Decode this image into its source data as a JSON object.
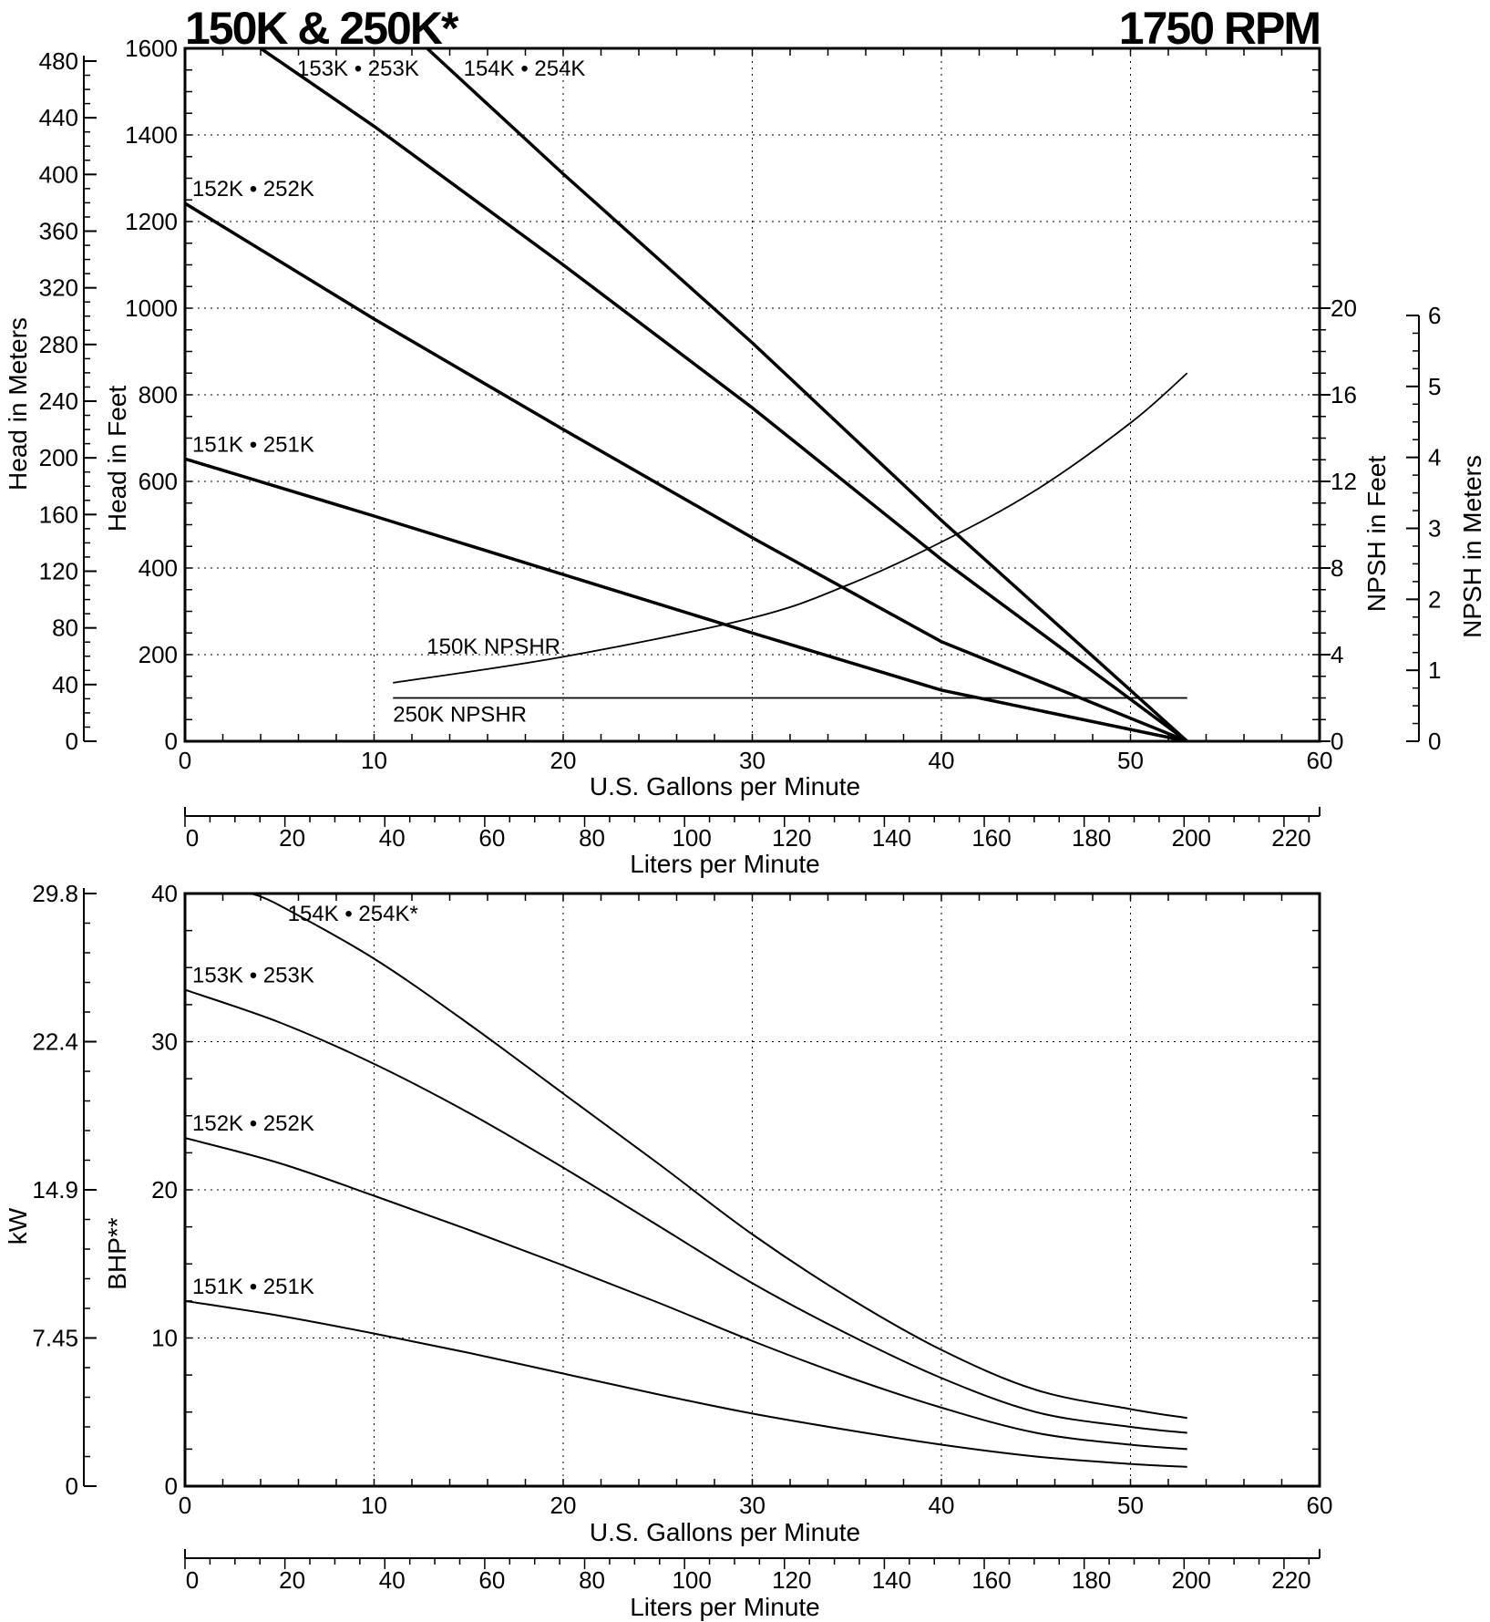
{
  "header": {
    "title_left": "150K & 250K*",
    "title_right": "1750 RPM"
  },
  "chart_data": [
    {
      "type": "line",
      "id": "head",
      "xlabel": "U.S. Gallons per Minute",
      "xlim": [
        0,
        60
      ],
      "x_ticks": [
        0,
        10,
        20,
        30,
        40,
        50,
        60
      ],
      "ylabel": "Head in Feet",
      "ylim": [
        0,
        1600
      ],
      "y_ticks": [
        0,
        200,
        400,
        600,
        800,
        1000,
        1200,
        1400,
        1600
      ],
      "grid": true,
      "secondary_axes": {
        "head_meters": {
          "label": "Head in Meters",
          "ticks": [
            0,
            40,
            80,
            120,
            160,
            200,
            240,
            280,
            320,
            360,
            400,
            440,
            480
          ]
        },
        "npsh_feet": {
          "label": "NPSH in Feet",
          "ticks": [
            0,
            4,
            8,
            12,
            16,
            20
          ],
          "range": [
            0,
            20
          ]
        },
        "npsh_meters": {
          "label": "NPSH in Meters",
          "ticks": [
            0,
            1,
            2,
            3,
            4,
            5,
            6
          ],
          "range": [
            0,
            6
          ]
        },
        "liters": {
          "label": "Liters per Minute",
          "ticks": [
            0,
            20,
            40,
            60,
            80,
            100,
            120,
            140,
            160,
            180,
            200,
            220
          ]
        }
      },
      "series": [
        {
          "name": "151K • 251K",
          "x": [
            0,
            10,
            20,
            30,
            40,
            53
          ],
          "y": [
            652,
            520,
            385,
            250,
            118,
            0
          ]
        },
        {
          "name": "152K • 252K",
          "x": [
            0,
            10,
            20,
            30,
            40,
            53
          ],
          "y": [
            1242,
            975,
            720,
            470,
            230,
            0
          ]
        },
        {
          "name": "153K • 253K",
          "x": [
            4,
            10,
            20,
            30,
            40,
            53
          ],
          "y": [
            1600,
            1420,
            1100,
            770,
            420,
            0
          ]
        },
        {
          "name": "154K • 254K",
          "x": [
            12.8,
            20,
            30,
            40,
            53
          ],
          "y": [
            1600,
            1310,
            920,
            510,
            0
          ]
        }
      ],
      "npshr": [
        {
          "name": "150K NPSHR",
          "axis": "npsh_feet",
          "x": [
            11,
            20,
            30,
            35,
            40,
            45,
            50,
            53
          ],
          "y": [
            2.7,
            3.9,
            5.7,
            7.2,
            9.2,
            11.6,
            14.7,
            17
          ]
        },
        {
          "name": "250K NPSHR",
          "axis": "npsh_feet",
          "x": [
            11,
            53
          ],
          "y": [
            2,
            2
          ]
        }
      ]
    },
    {
      "type": "line",
      "id": "bhp",
      "xlabel": "U.S. Gallons per Minute",
      "xlim": [
        0,
        60
      ],
      "x_ticks": [
        0,
        10,
        20,
        30,
        40,
        50,
        60
      ],
      "ylabel": "BHP**",
      "ylim": [
        0,
        40
      ],
      "y_ticks": [
        0,
        10,
        20,
        30,
        40
      ],
      "grid": true,
      "secondary_axes": {
        "kw": {
          "label": "kW",
          "ticks": [
            "0",
            "7.45",
            "14.9",
            "22.4",
            "29.8"
          ]
        },
        "liters": {
          "label": "Liters per Minute",
          "ticks": [
            0,
            20,
            40,
            60,
            80,
            100,
            120,
            140,
            160,
            180,
            200,
            220
          ]
        }
      },
      "series": [
        {
          "name": "151K • 251K",
          "x": [
            0,
            5,
            10,
            15,
            20,
            25,
            30,
            35,
            40,
            45,
            50,
            53
          ],
          "y": [
            12.5,
            11.5,
            10.3,
            9.0,
            7.6,
            6.2,
            4.9,
            3.8,
            2.8,
            2.0,
            1.5,
            1.3
          ]
        },
        {
          "name": "152K • 252K",
          "x": [
            0,
            5,
            10,
            15,
            20,
            25,
            30,
            35,
            40,
            45,
            50,
            53
          ],
          "y": [
            23.5,
            21.8,
            19.6,
            17.3,
            14.9,
            12.4,
            9.8,
            7.4,
            5.3,
            3.6,
            2.8,
            2.5
          ]
        },
        {
          "name": "153K • 253K",
          "x": [
            0,
            5,
            10,
            15,
            20,
            25,
            30,
            35,
            40,
            45,
            50,
            53
          ],
          "y": [
            33.5,
            31.3,
            28.5,
            25.2,
            21.5,
            17.6,
            13.7,
            10.3,
            7.3,
            5.0,
            4.0,
            3.6
          ]
        },
        {
          "name": "154K • 254K*",
          "x": [
            3.5,
            5,
            10,
            15,
            20,
            25,
            30,
            35,
            40,
            45,
            50,
            53
          ],
          "y": [
            40,
            39.2,
            35.6,
            31.2,
            26.5,
            21.8,
            17.0,
            12.8,
            9.2,
            6.5,
            5.2,
            4.6
          ]
        }
      ]
    }
  ],
  "label_gap": "~"
}
